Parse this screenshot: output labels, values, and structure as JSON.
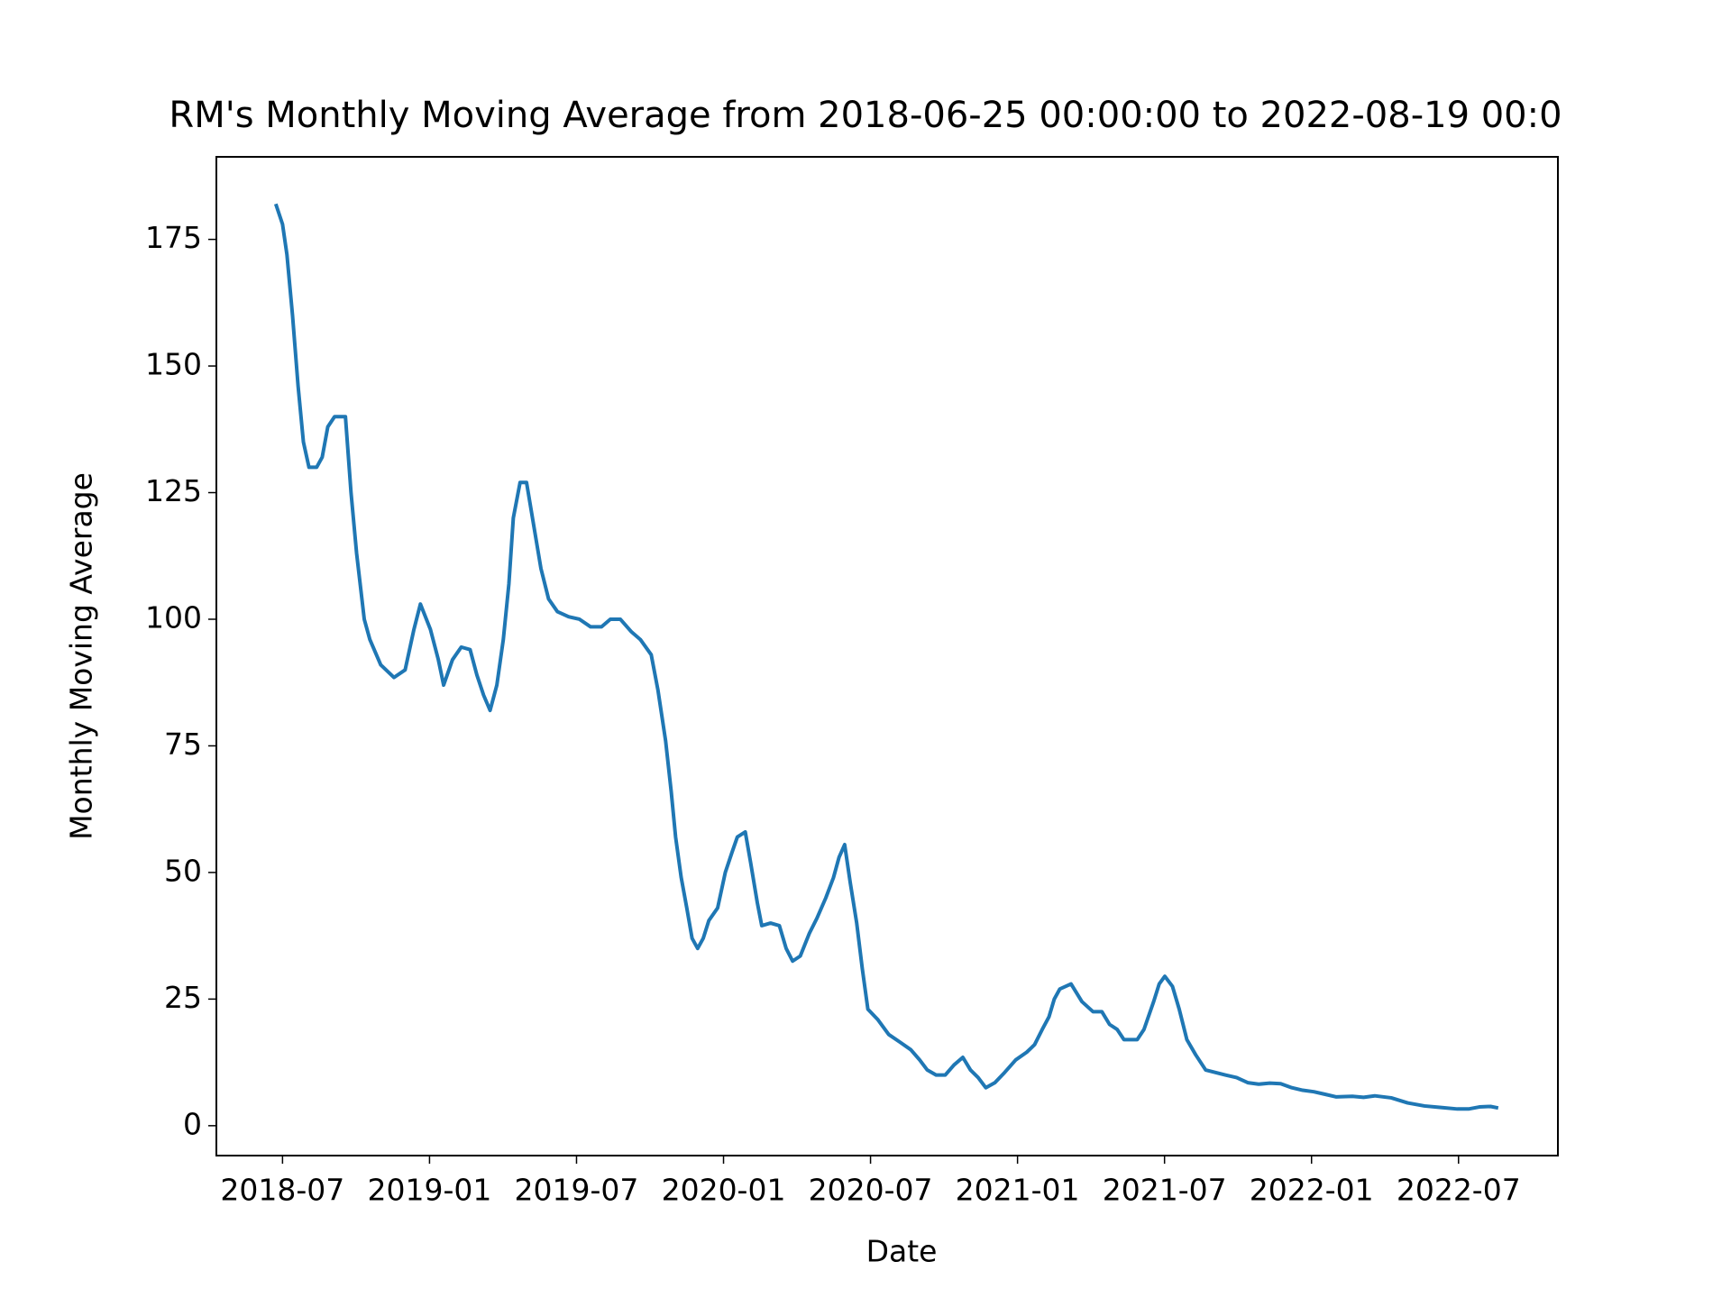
{
  "chart_data": {
    "type": "line",
    "title": "RM's Monthly Moving Average from 2018-06-25 00:00:00 to 2022-08-19 00:0",
    "x_label": "Date",
    "y_label": "Monthly Moving Average",
    "x": [
      2018.477,
      2018.5,
      2018.515,
      2018.534,
      2018.553,
      2018.571,
      2018.59,
      2018.616,
      2018.635,
      2018.654,
      2018.677,
      2018.692,
      2018.714,
      2018.733,
      2018.752,
      2018.778,
      2018.797,
      2018.834,
      2018.879,
      2018.917,
      2018.947,
      2018.969,
      2019.003,
      2019.03,
      2019.048,
      2019.078,
      2019.108,
      2019.138,
      2019.161,
      2019.184,
      2019.206,
      2019.229,
      2019.251,
      2019.27,
      2019.285,
      2019.308,
      2019.33,
      2019.353,
      2019.379,
      2019.405,
      2019.435,
      2019.473,
      2019.51,
      2019.548,
      2019.585,
      2019.615,
      2019.649,
      2019.687,
      2019.717,
      2019.754,
      2019.777,
      2019.803,
      2019.822,
      2019.837,
      2019.856,
      2019.875,
      2019.893,
      2019.912,
      2019.931,
      2019.95,
      2019.98,
      2020.006,
      2020.029,
      2020.047,
      2020.074,
      2020.092,
      2020.115,
      2020.13,
      2020.16,
      2020.19,
      2020.213,
      2020.235,
      2020.261,
      2020.292,
      2020.318,
      2020.348,
      2020.374,
      2020.393,
      2020.412,
      2020.431,
      2020.453,
      2020.472,
      2020.491,
      2020.524,
      2020.562,
      2020.6,
      2020.637,
      2020.667,
      2020.693,
      2020.723,
      2020.754,
      2020.784,
      2020.814,
      2020.84,
      2020.866,
      2020.892,
      2020.923,
      2020.956,
      2020.994,
      2021.031,
      2021.058,
      2021.084,
      2021.107,
      2021.125,
      2021.144,
      2021.182,
      2021.219,
      2021.257,
      2021.287,
      2021.313,
      2021.339,
      2021.362,
      2021.407,
      2021.43,
      2021.463,
      2021.482,
      2021.501,
      2021.527,
      2021.55,
      2021.576,
      2021.606,
      2021.64,
      2021.708,
      2021.745,
      2021.783,
      2021.82,
      2021.858,
      2021.895,
      2021.933,
      2021.97,
      2022.008,
      2022.046,
      2022.083,
      2022.139,
      2022.177,
      2022.215,
      2022.271,
      2022.327,
      2022.384,
      2022.44,
      2022.496,
      2022.534,
      2022.571,
      2022.609,
      2022.635
    ],
    "series": [
      {
        "color": "#1f77b4",
        "values": [
          182,
          178,
          172,
          160,
          146,
          135,
          130,
          130,
          132,
          138,
          140,
          140,
          140,
          125,
          113,
          100,
          96,
          91,
          88.5,
          90,
          98,
          103,
          98,
          92,
          87,
          92,
          94.5,
          94,
          89,
          85,
          82,
          87,
          96,
          107,
          120,
          127,
          127,
          119,
          110,
          104,
          101.5,
          100.5,
          100,
          98.5,
          98.5,
          100,
          100,
          97.5,
          96,
          93,
          86,
          76,
          66,
          57,
          49,
          43,
          37,
          35,
          37,
          40.5,
          43,
          50,
          54,
          57,
          58,
          52,
          44,
          39.5,
          40,
          39.5,
          35,
          32.5,
          33.5,
          38,
          41,
          45,
          49,
          53,
          55.5,
          48,
          40,
          31,
          23,
          21,
          18,
          16.5,
          15,
          13,
          11,
          10,
          10,
          12,
          13.5,
          11,
          9.5,
          7.5,
          8.5,
          10.5,
          13,
          14.5,
          16,
          19,
          21.5,
          25,
          27,
          28,
          24.5,
          22.5,
          22.5,
          20,
          19,
          17,
          17,
          19,
          24.5,
          28,
          29.5,
          27.5,
          23,
          17,
          14,
          11,
          10,
          9.5,
          8.5,
          8.2,
          8.4,
          8.3,
          7.5,
          7,
          6.7,
          6.2,
          5.7,
          5.8,
          5.6,
          5.9,
          5.5,
          4.5,
          3.9,
          3.6,
          3.3,
          3.3,
          3.7,
          3.8,
          3.5
        ]
      }
    ],
    "xlim": [
      2018.275,
      2022.838
    ],
    "xticks": [
      {
        "value": 2018.5,
        "label": "2018-07"
      },
      {
        "value": 2019.0,
        "label": "2019-01"
      },
      {
        "value": 2019.5,
        "label": "2019-07"
      },
      {
        "value": 2020.0,
        "label": "2020-01"
      },
      {
        "value": 2020.5,
        "label": "2020-07"
      },
      {
        "value": 2021.0,
        "label": "2021-01"
      },
      {
        "value": 2021.5,
        "label": "2021-07"
      },
      {
        "value": 2022.0,
        "label": "2022-01"
      },
      {
        "value": 2022.5,
        "label": "2022-07"
      }
    ],
    "ylim": [
      -5.9,
      191.3
    ],
    "yticks": [
      0,
      25,
      50,
      75,
      100,
      125,
      150,
      175
    ],
    "grid": false
  }
}
